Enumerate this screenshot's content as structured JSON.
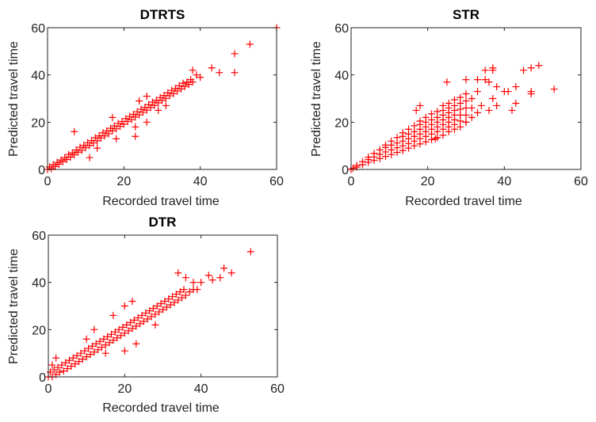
{
  "chart_data": [
    {
      "type": "scatter",
      "title": "DTRTS",
      "xlabel": "Recorded travel time",
      "ylabel": "Predicted travel time",
      "xlim": [
        0,
        60
      ],
      "ylim": [
        0,
        60
      ],
      "xticks": [
        "0",
        "20",
        "40",
        "60"
      ],
      "yticks": [
        "0",
        "20",
        "40",
        "60"
      ],
      "marker": "+",
      "color": "#ff0000",
      "points": [
        [
          0,
          0
        ],
        [
          0.5,
          1
        ],
        [
          1,
          0.3
        ],
        [
          1.5,
          2
        ],
        [
          2,
          1.2
        ],
        [
          2.5,
          3
        ],
        [
          3,
          2.2
        ],
        [
          3.5,
          4
        ],
        [
          4,
          3.3
        ],
        [
          4.5,
          5
        ],
        [
          5,
          4.2
        ],
        [
          5.5,
          6.3
        ],
        [
          6,
          5.2
        ],
        [
          6.5,
          7
        ],
        [
          7,
          6.2
        ],
        [
          7.5,
          8.2
        ],
        [
          8,
          7.3
        ],
        [
          8.5,
          9.4
        ],
        [
          9,
          8.1
        ],
        [
          9.5,
          10.2
        ],
        [
          10,
          9.2
        ],
        [
          10.5,
          11.3
        ],
        [
          11,
          10.1
        ],
        [
          11.5,
          12.2
        ],
        [
          12,
          11.2
        ],
        [
          12.5,
          13.4
        ],
        [
          13,
          12.1
        ],
        [
          13.5,
          14.2
        ],
        [
          14,
          13.3
        ],
        [
          14.5,
          15.5
        ],
        [
          15,
          14.2
        ],
        [
          15.5,
          16.3
        ],
        [
          16,
          15.1
        ],
        [
          16.5,
          17.4
        ],
        [
          17,
          16.3
        ],
        [
          17.5,
          18.4
        ],
        [
          18,
          17.2
        ],
        [
          18.5,
          19.5
        ],
        [
          19,
          18.2
        ],
        [
          19.5,
          20.3
        ],
        [
          20,
          19.2
        ],
        [
          20.5,
          21.5
        ],
        [
          21,
          20.3
        ],
        [
          21.5,
          22.4
        ],
        [
          22,
          21.1
        ],
        [
          22.5,
          23.3
        ],
        [
          23,
          22.2
        ],
        [
          23.5,
          24.4
        ],
        [
          24,
          23.1
        ],
        [
          24.5,
          25.5
        ],
        [
          25,
          24.2
        ],
        [
          25.5,
          26.3
        ],
        [
          26,
          25.1
        ],
        [
          26.5,
          27.4
        ],
        [
          27,
          26.2
        ],
        [
          27.5,
          28.5
        ],
        [
          28,
          27.1
        ],
        [
          28.5,
          29.3
        ],
        [
          29,
          28.2
        ],
        [
          29.5,
          30.4
        ],
        [
          30,
          29.2
        ],
        [
          30.5,
          31.3
        ],
        [
          31,
          30.1
        ],
        [
          31.5,
          32.4
        ],
        [
          32,
          31.2
        ],
        [
          32.5,
          33.5
        ],
        [
          33,
          32.1
        ],
        [
          33.5,
          34.3
        ],
        [
          34,
          33.2
        ],
        [
          34.5,
          35.4
        ],
        [
          35,
          34.1
        ],
        [
          35.5,
          36.5
        ],
        [
          36,
          35.1
        ],
        [
          36.5,
          37
        ],
        [
          37,
          36
        ],
        [
          37.5,
          38
        ],
        [
          38,
          37
        ],
        [
          60,
          60
        ],
        [
          53,
          53
        ],
        [
          49,
          49
        ],
        [
          49,
          41
        ],
        [
          43,
          43
        ],
        [
          45,
          41
        ],
        [
          38,
          42
        ],
        [
          39,
          40
        ],
        [
          40,
          39
        ],
        [
          7,
          16
        ],
        [
          11,
          5
        ],
        [
          23,
          14
        ],
        [
          26,
          20
        ],
        [
          18,
          13
        ],
        [
          29,
          25
        ],
        [
          26,
          31
        ],
        [
          24,
          29
        ],
        [
          13,
          9
        ],
        [
          17,
          22
        ],
        [
          23,
          18
        ],
        [
          31,
          27
        ]
      ]
    },
    {
      "type": "scatter",
      "title": "STR",
      "xlabel": "Recorded travel time",
      "ylabel": "Predicted travel time",
      "xlim": [
        0,
        60
      ],
      "ylim": [
        0,
        60
      ],
      "xticks": [
        "0",
        "20",
        "40",
        "60"
      ],
      "yticks": [
        "0",
        "20",
        "40",
        "60"
      ],
      "marker": "+",
      "color": "#ff0000",
      "points": [
        [
          0,
          0
        ],
        [
          0.5,
          0.5
        ],
        [
          1.5,
          1
        ],
        [
          1.5,
          1.7
        ],
        [
          3,
          2
        ],
        [
          3,
          3.3
        ],
        [
          4.5,
          3
        ],
        [
          4.5,
          4.2
        ],
        [
          4.5,
          5.2
        ],
        [
          6,
          3.8
        ],
        [
          6,
          5.3
        ],
        [
          6,
          6.8
        ],
        [
          7.5,
          4.6
        ],
        [
          7.5,
          6.4
        ],
        [
          7.5,
          8.3
        ],
        [
          9,
          5.5
        ],
        [
          9,
          7.4
        ],
        [
          9,
          9.3
        ],
        [
          9,
          10.3
        ],
        [
          10.5,
          6.3
        ],
        [
          10.5,
          8.3
        ],
        [
          10.5,
          10.3
        ],
        [
          10.5,
          12
        ],
        [
          12,
          7.2
        ],
        [
          12,
          9.2
        ],
        [
          12,
          11.2
        ],
        [
          12,
          13.5
        ],
        [
          13.5,
          8
        ],
        [
          13.5,
          10
        ],
        [
          13.5,
          12
        ],
        [
          13.5,
          14
        ],
        [
          13.5,
          15.5
        ],
        [
          15,
          9
        ],
        [
          15,
          11
        ],
        [
          15,
          13
        ],
        [
          15,
          15
        ],
        [
          15,
          17
        ],
        [
          16.5,
          10
        ],
        [
          16.5,
          12
        ],
        [
          16.5,
          14
        ],
        [
          16.5,
          16
        ],
        [
          16.5,
          18.5
        ],
        [
          18,
          10.8
        ],
        [
          18,
          13
        ],
        [
          18,
          15
        ],
        [
          18,
          17
        ],
        [
          18,
          19
        ],
        [
          18,
          20.5
        ],
        [
          19.5,
          11.7
        ],
        [
          19.5,
          14
        ],
        [
          19.5,
          16
        ],
        [
          19.5,
          18
        ],
        [
          19.5,
          20
        ],
        [
          19.5,
          22
        ],
        [
          21,
          12.6
        ],
        [
          21,
          15
        ],
        [
          21,
          17
        ],
        [
          21,
          19
        ],
        [
          21,
          21
        ],
        [
          21,
          23.5
        ],
        [
          22.5,
          13.5
        ],
        [
          22.5,
          16
        ],
        [
          22.5,
          18
        ],
        [
          22.5,
          20
        ],
        [
          22.5,
          22
        ],
        [
          22.5,
          24.5
        ],
        [
          24,
          14.5
        ],
        [
          24,
          17
        ],
        [
          24,
          19
        ],
        [
          24,
          21
        ],
        [
          24,
          23
        ],
        [
          24,
          25
        ],
        [
          24,
          27
        ],
        [
          25.5,
          16
        ],
        [
          25.5,
          18
        ],
        [
          25.5,
          20
        ],
        [
          25.5,
          22
        ],
        [
          25.5,
          24
        ],
        [
          25.5,
          26
        ],
        [
          25.5,
          28
        ],
        [
          27,
          17
        ],
        [
          27,
          19
        ],
        [
          27,
          21
        ],
        [
          27,
          23
        ],
        [
          27,
          25
        ],
        [
          27,
          27
        ],
        [
          27,
          29.5
        ],
        [
          28.5,
          18
        ],
        [
          28.5,
          20.5
        ],
        [
          28.5,
          23
        ],
        [
          28.5,
          25.5
        ],
        [
          28.5,
          28
        ],
        [
          28.5,
          30.5
        ],
        [
          30,
          20
        ],
        [
          30,
          23
        ],
        [
          30,
          26
        ],
        [
          30,
          29
        ],
        [
          30,
          32
        ],
        [
          31.5,
          22
        ],
        [
          31.5,
          26
        ],
        [
          31.5,
          30
        ],
        [
          37,
          43
        ],
        [
          37,
          42
        ],
        [
          35,
          42
        ],
        [
          49,
          44
        ],
        [
          47,
          43
        ],
        [
          45,
          42
        ],
        [
          53,
          34
        ],
        [
          47,
          32
        ],
        [
          47,
          33
        ],
        [
          43,
          35
        ],
        [
          43,
          28
        ],
        [
          41,
          33
        ],
        [
          42,
          25
        ],
        [
          38,
          27
        ],
        [
          37,
          30
        ],
        [
          36,
          37
        ],
        [
          35,
          38
        ],
        [
          33,
          38
        ],
        [
          30,
          38
        ],
        [
          25,
          37
        ],
        [
          18,
          27
        ],
        [
          17,
          25
        ],
        [
          22,
          13
        ],
        [
          30,
          20
        ],
        [
          33,
          24
        ],
        [
          34,
          27
        ],
        [
          36,
          25
        ],
        [
          33,
          33
        ],
        [
          38,
          35
        ],
        [
          40,
          33
        ]
      ]
    },
    {
      "type": "scatter",
      "title": "DTR",
      "xlabel": "Recorded travel time",
      "ylabel": "Predicted travel time",
      "xlim": [
        0,
        60
      ],
      "ylim": [
        0,
        60
      ],
      "xticks": [
        "0",
        "20",
        "40",
        "60"
      ],
      "yticks": [
        "0",
        "20",
        "40",
        "60"
      ],
      "marker": "+",
      "color": "#ff0000",
      "points": [
        [
          0,
          0
        ],
        [
          0.5,
          2
        ],
        [
          1,
          0
        ],
        [
          1.5,
          3
        ],
        [
          2,
          1
        ],
        [
          2.5,
          4
        ],
        [
          3,
          2
        ],
        [
          3.5,
          5
        ],
        [
          4,
          2.5
        ],
        [
          4.5,
          6
        ],
        [
          5,
          3.5
        ],
        [
          5.5,
          7
        ],
        [
          6,
          4.5
        ],
        [
          6.5,
          8
        ],
        [
          7,
          5.5
        ],
        [
          7.5,
          9
        ],
        [
          8,
          6.5
        ],
        [
          8.5,
          10
        ],
        [
          9,
          7.5
        ],
        [
          9.5,
          11
        ],
        [
          10,
          8.5
        ],
        [
          10.5,
          12
        ],
        [
          11,
          9.5
        ],
        [
          11.5,
          13
        ],
        [
          12,
          10.5
        ],
        [
          12.5,
          14
        ],
        [
          13,
          11.5
        ],
        [
          13.5,
          15
        ],
        [
          14,
          12.5
        ],
        [
          14.5,
          16
        ],
        [
          15,
          13.5
        ],
        [
          15.5,
          17
        ],
        [
          16,
          14.5
        ],
        [
          16.5,
          18
        ],
        [
          17,
          15.5
        ],
        [
          17.5,
          19
        ],
        [
          18,
          16.5
        ],
        [
          18.5,
          20
        ],
        [
          19,
          17.5
        ],
        [
          19.5,
          21
        ],
        [
          20,
          18.5
        ],
        [
          20.5,
          22
        ],
        [
          21,
          19.5
        ],
        [
          21.5,
          23
        ],
        [
          22,
          20.5
        ],
        [
          22.5,
          24
        ],
        [
          23,
          21.5
        ],
        [
          23.5,
          25
        ],
        [
          24,
          22.5
        ],
        [
          24.5,
          26
        ],
        [
          25,
          23.5
        ],
        [
          25.5,
          27
        ],
        [
          26,
          24.5
        ],
        [
          26.5,
          28
        ],
        [
          27,
          25.5
        ],
        [
          27.5,
          29
        ],
        [
          28,
          26.5
        ],
        [
          28.5,
          30
        ],
        [
          29,
          27.5
        ],
        [
          29.5,
          31
        ],
        [
          30,
          28.5
        ],
        [
          30.5,
          32
        ],
        [
          31,
          29.5
        ],
        [
          31.5,
          33
        ],
        [
          32,
          30.5
        ],
        [
          32.5,
          34
        ],
        [
          33,
          31.5
        ],
        [
          33.5,
          35
        ],
        [
          34,
          32.5
        ],
        [
          34.5,
          36
        ],
        [
          35,
          33.5
        ],
        [
          35.5,
          37
        ],
        [
          36,
          34.5
        ],
        [
          37,
          36
        ],
        [
          38,
          37
        ],
        [
          53,
          53
        ],
        [
          46,
          46
        ],
        [
          48,
          44
        ],
        [
          45,
          42
        ],
        [
          42,
          43
        ],
        [
          43,
          41
        ],
        [
          40,
          40
        ],
        [
          38,
          40
        ],
        [
          39,
          37
        ],
        [
          34,
          44
        ],
        [
          36,
          42
        ],
        [
          20,
          30
        ],
        [
          17,
          26
        ],
        [
          22,
          32
        ],
        [
          12,
          20
        ],
        [
          23,
          14
        ],
        [
          20,
          11
        ],
        [
          2,
          8
        ],
        [
          1,
          5
        ],
        [
          15,
          10
        ],
        [
          28,
          22
        ],
        [
          10,
          16
        ]
      ]
    }
  ]
}
